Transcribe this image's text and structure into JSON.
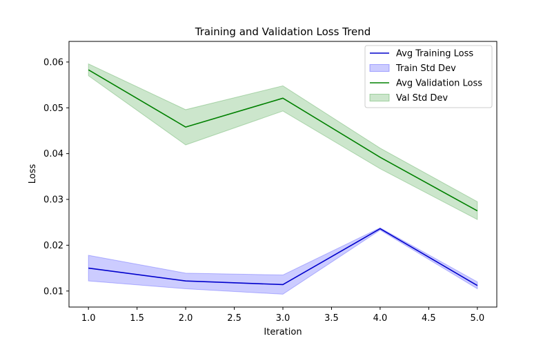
{
  "chart_data": {
    "type": "line",
    "title": "Training and Validation Loss Trend",
    "xlabel": "Iteration",
    "ylabel": "Loss",
    "x": [
      1.0,
      2.0,
      3.0,
      4.0,
      5.0
    ],
    "xlim": [
      0.8,
      5.2
    ],
    "ylim": [
      0.0065,
      0.0645
    ],
    "xticks": [
      1.0,
      1.5,
      2.0,
      2.5,
      3.0,
      3.5,
      4.0,
      4.5,
      5.0
    ],
    "xtick_labels": [
      "1.0",
      "1.5",
      "2.0",
      "2.5",
      "3.0",
      "3.5",
      "4.0",
      "4.5",
      "5.0"
    ],
    "yticks": [
      0.01,
      0.02,
      0.03,
      0.04,
      0.05,
      0.06
    ],
    "ytick_labels": [
      "0.01",
      "0.02",
      "0.03",
      "0.04",
      "0.05",
      "0.06"
    ],
    "grid": false,
    "legend_position": "top-right",
    "series": [
      {
        "name": "Avg Training Loss",
        "values": [
          0.015,
          0.0122,
          0.0114,
          0.0236,
          0.0112
        ],
        "upper": [
          0.0178,
          0.0139,
          0.0135,
          0.0238,
          0.012
        ],
        "lower": [
          0.0122,
          0.0105,
          0.0093,
          0.0233,
          0.0105
        ],
        "band_name": "Train Std Dev",
        "color": "#0000cc",
        "band_color": "#0000ff"
      },
      {
        "name": "Avg Validation Loss",
        "values": [
          0.0583,
          0.0458,
          0.0521,
          0.0392,
          0.0275
        ],
        "upper": [
          0.0596,
          0.0496,
          0.0548,
          0.0412,
          0.0295
        ],
        "lower": [
          0.057,
          0.0419,
          0.0493,
          0.0367,
          0.0256
        ],
        "band_name": "Val Std Dev",
        "color": "#008000",
        "band_color": "#008000"
      }
    ]
  }
}
